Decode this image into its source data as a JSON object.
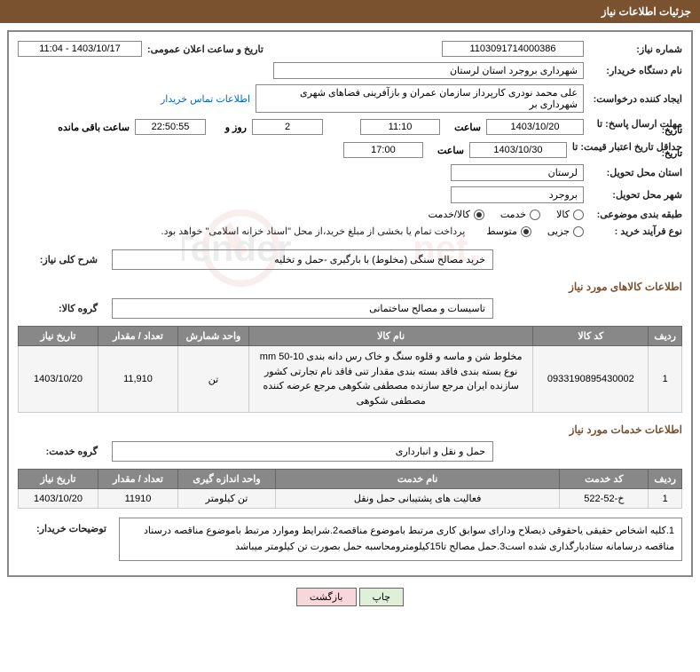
{
  "colors": {
    "header_bg": "#7a5230",
    "header_text": "#ffffff",
    "border": "#888888",
    "table_header_bg": "#888888",
    "table_header_text": "#ffffff",
    "table_row_bg": "#f5f5f5",
    "link": "#0066cc",
    "btn_print_bg": "#dff0d8",
    "btn_back_bg": "#f8d7da"
  },
  "header": {
    "title": "جزئیات اطلاعات نیاز"
  },
  "fields": {
    "need_no_label": "شماره نیاز:",
    "need_no": "1103091714000386",
    "announce_label": "تاریخ و ساعت اعلان عمومی:",
    "announce_val": "1403/10/17 - 11:04",
    "buyer_org_label": "نام دستگاه خریدار:",
    "buyer_org": "شهرداری بروجرد استان لرستان",
    "requester_label": "ایجاد کننده درخواست:",
    "requester": "علی محمد نودری کارپرداز سازمان عمران و بازآفرینی فضاهای شهری شهرداری بر",
    "contact_link": "اطلاعات تماس خریدار",
    "deadline_label": "مهلت ارسال پاسخ: تا",
    "deadline_tarikh_label": "تاریخ:",
    "deadline_date": "1403/10/20",
    "saat_label": "ساعت",
    "deadline_time": "11:10",
    "remaining_days": "2",
    "rooz_va": "روز و",
    "remaining_time": "22:50:55",
    "saat_baghi": "ساعت باقی مانده",
    "validity_label": "حداقل تاریخ اعتبار قیمت: تا",
    "validity_tarikh_label": "تاریخ:",
    "validity_date": "1403/10/30",
    "validity_time": "17:00",
    "delivery_prov_label": "استان محل تحویل:",
    "delivery_prov": "لرستان",
    "delivery_city_label": "شهر محل تحویل:",
    "delivery_city": "بروجرد",
    "category_label": "طبقه بندی موضوعی:",
    "cat_kala": "کالا",
    "cat_khadamat": "خدمت",
    "cat_kala_khadamat": "کالا/خدمت",
    "process_label": "نوع فرآیند خرید :",
    "proc_jozi": "جزیی",
    "proc_motevaset": "متوسط",
    "process_note": "پرداخت تمام یا بخشی از مبلغ خرید،از محل \"اسناد خزانه اسلامی\" خواهد بود.",
    "overall_desc_label": "شرح کلی نیاز:",
    "overall_desc": "خرید مصالح سنگی (مخلوط) با بارگیری -حمل و تخلیه",
    "goods_section": "اطلاعات کالاهای مورد نیاز",
    "goods_group_label": "گروه کالا:",
    "goods_group": "تاسیسات و مصالح ساختمانی",
    "services_section": "اطلاعات خدمات مورد نیاز",
    "services_group_label": "گروه خدمت:",
    "services_group": "حمل و نقل و انبارداری",
    "buyer_notes_label": "توضیحات خریدار:",
    "buyer_notes": "1.کلیه اشخاص حقیقی یاحقوقی ذیصلاح ودارای سوابق کاری مرتبط باموضوع مناقصه2.شرایط وموارد مرتبط باموضوع مناقصه درسناد مناقصه درسامانه ستادبارگذاری شده است3.حمل مصالح تا15کیلومترومحاسبه حمل بصورت تن کیلومتر میباشد"
  },
  "goods_table": {
    "headers": [
      "ردیف",
      "کد کالا",
      "نام کالا",
      "واحد شمارش",
      "تعداد / مقدار",
      "تاریخ نیاز"
    ],
    "col_widths": [
      "35px",
      "130px",
      "auto",
      "80px",
      "90px",
      "90px"
    ],
    "rows": [
      {
        "row_no": "1",
        "code": "0933190895430002",
        "name": "مخلوط شن و ماسه و قلوه سنگ و خاک رس دانه بندی 10-50 mm نوع بسته بندی فاقد بسته بندی مقدار تنی فاقد نام تجارتی کشور سازنده ایران مرجع سازنده مصطفی شکوهی مرجع عرضه کننده مصطفی شکوهی",
        "unit": "تن",
        "qty": "11,910",
        "date": "1403/10/20"
      }
    ]
  },
  "services_table": {
    "headers": [
      "ردیف",
      "کد خدمت",
      "نام خدمت",
      "واحد اندازه گیری",
      "تعداد / مقدار",
      "تاریخ نیاز"
    ],
    "col_widths": [
      "35px",
      "100px",
      "auto",
      "110px",
      "90px",
      "90px"
    ],
    "rows": [
      {
        "row_no": "1",
        "code": "خ-52-522",
        "name": "فعالیت های پشتیبانی حمل ونقل",
        "unit": "تن کیلومتر",
        "qty": "11910",
        "date": "1403/10/20"
      }
    ]
  },
  "buttons": {
    "print": "چاپ",
    "back": "بازگشت"
  }
}
